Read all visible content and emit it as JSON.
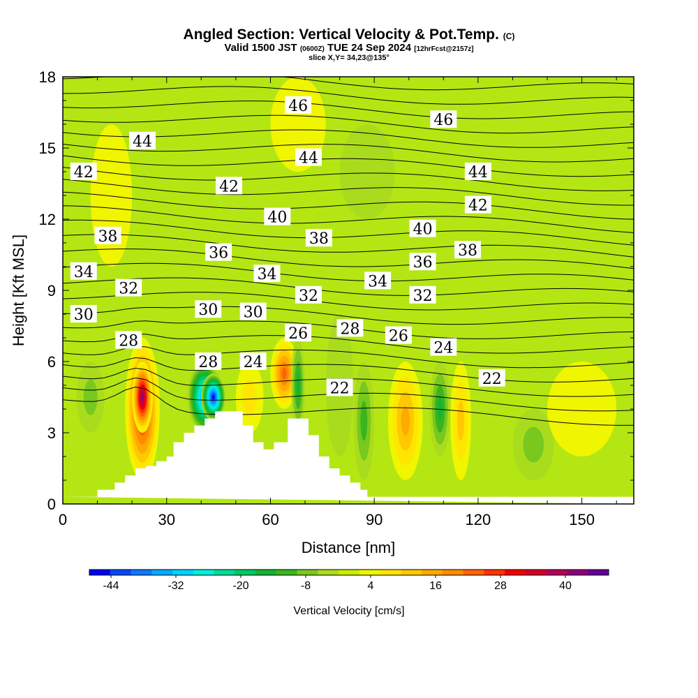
{
  "title": {
    "main": "Angled Section: Vertical Velocity & Pot.Temp.",
    "unit": "(C)",
    "valid_a": "Valid 1500 JST",
    "valid_z": "(0600Z)",
    "valid_b": "TUE 24 Sep 2024",
    "fcst": "[12hrFcst@2157z]",
    "slice": "slice X,Y= 34,23@135°"
  },
  "chart_data": {
    "type": "heatmap",
    "xlabel": "Distance [nm]",
    "ylabel": "Height [Kft MSL]",
    "xlim": [
      0,
      165
    ],
    "ylim": [
      0,
      18
    ],
    "x_ticks": [
      0,
      30,
      60,
      90,
      120,
      150
    ],
    "y_ticks": [
      0,
      3,
      6,
      9,
      12,
      15,
      18
    ],
    "colorbar": {
      "label": "Vertical Velocity [cm/s]",
      "ticks": [
        "-44",
        "-32",
        "-20",
        "-8",
        "4",
        "16",
        "28",
        "40"
      ],
      "levels": [
        -48,
        -44,
        -40,
        -36,
        -32,
        -28,
        -24,
        -20,
        -16,
        -12,
        -8,
        -4,
        0,
        4,
        8,
        12,
        16,
        20,
        24,
        28,
        32,
        36,
        40,
        44,
        48
      ],
      "colors": [
        "#0000f0",
        "#0a46f5",
        "#0f78ff",
        "#00aaff",
        "#00d2ff",
        "#00f0dc",
        "#00dc9a",
        "#00c864",
        "#14b432",
        "#3cb41e",
        "#78c81e",
        "#aadc1e",
        "#c8ee00",
        "#f0f500",
        "#ffe600",
        "#ffc800",
        "#ffaa00",
        "#ff8c00",
        "#ff6400",
        "#ff3200",
        "#f00000",
        "#d20028",
        "#b4005a",
        "#8c0078",
        "#640096"
      ]
    },
    "velocity_cells": [
      {
        "x": [
          4,
          12
        ],
        "y": [
          3,
          6
        ],
        "w": -6
      },
      {
        "x": [
          18,
          28
        ],
        "y": [
          1,
          7
        ],
        "w": 32
      },
      {
        "x": [
          20,
          26
        ],
        "y": [
          3,
          6
        ],
        "w": 44
      },
      {
        "x": [
          36,
          46
        ],
        "y": [
          3,
          6
        ],
        "w": -40
      },
      {
        "x": [
          40,
          47
        ],
        "y": [
          3.5,
          5.5
        ],
        "w": -48
      },
      {
        "x": [
          50,
          58
        ],
        "y": [
          3,
          6
        ],
        "w": 8
      },
      {
        "x": [
          60,
          68
        ],
        "y": [
          4,
          7
        ],
        "w": 24
      },
      {
        "x": [
          66,
          70
        ],
        "y": [
          3,
          7
        ],
        "w": -14
      },
      {
        "x": [
          76,
          84
        ],
        "y": [
          2,
          8
        ],
        "w": -4
      },
      {
        "x": [
          84,
          90
        ],
        "y": [
          1,
          6
        ],
        "w": -12
      },
      {
        "x": [
          94,
          104
        ],
        "y": [
          1,
          6
        ],
        "w": 16
      },
      {
        "x": [
          106,
          112
        ],
        "y": [
          2,
          6
        ],
        "w": -14
      },
      {
        "x": [
          112,
          118
        ],
        "y": [
          1,
          6
        ],
        "w": 10
      },
      {
        "x": [
          130,
          142
        ],
        "y": [
          1,
          4
        ],
        "w": -6
      },
      {
        "x": [
          140,
          160
        ],
        "y": [
          2,
          6
        ],
        "w": 4
      },
      {
        "x": [
          8,
          20
        ],
        "y": [
          10,
          16
        ],
        "w": 4
      },
      {
        "x": [
          60,
          76
        ],
        "y": [
          14,
          18
        ],
        "w": 4
      },
      {
        "x": [
          80,
          96
        ],
        "y": [
          12,
          16
        ],
        "w": -4
      }
    ],
    "terrain": [
      [
        0,
        0.3
      ],
      [
        10,
        0.3
      ],
      [
        10,
        0.6
      ],
      [
        15,
        0.6
      ],
      [
        15,
        0.9
      ],
      [
        18,
        0.9
      ],
      [
        18,
        1.2
      ],
      [
        21,
        1.2
      ],
      [
        21,
        1.5
      ],
      [
        24,
        1.5
      ],
      [
        24,
        1.6
      ],
      [
        27,
        1.6
      ],
      [
        27,
        1.8
      ],
      [
        30,
        1.8
      ],
      [
        30,
        2.0
      ],
      [
        32,
        2.0
      ],
      [
        32,
        2.6
      ],
      [
        35,
        2.6
      ],
      [
        35,
        3.0
      ],
      [
        38,
        3.0
      ],
      [
        38,
        3.3
      ],
      [
        41,
        3.3
      ],
      [
        41,
        3.6
      ],
      [
        44,
        3.6
      ],
      [
        44,
        3.9
      ],
      [
        52,
        3.9
      ],
      [
        52,
        3.3
      ],
      [
        55,
        3.3
      ],
      [
        55,
        2.6
      ],
      [
        58,
        2.6
      ],
      [
        58,
        2.3
      ],
      [
        61,
        2.3
      ],
      [
        61,
        2.6
      ],
      [
        65,
        2.6
      ],
      [
        65,
        3.6
      ],
      [
        71,
        3.6
      ],
      [
        71,
        2.9
      ],
      [
        74,
        2.9
      ],
      [
        74,
        2.0
      ],
      [
        77,
        2.0
      ],
      [
        77,
        1.5
      ],
      [
        80,
        1.5
      ],
      [
        80,
        1.2
      ],
      [
        83,
        1.2
      ],
      [
        83,
        0.9
      ],
      [
        86,
        0.9
      ],
      [
        86,
        0.6
      ],
      [
        88,
        0.6
      ],
      [
        88,
        0.3
      ],
      [
        165,
        0.3
      ],
      [
        165,
        0
      ]
    ],
    "theta_contours": [
      22,
      23,
      24,
      25,
      26,
      27,
      28,
      29,
      30,
      31,
      32,
      33,
      34,
      35,
      36,
      37,
      38,
      39,
      40,
      41,
      42,
      43,
      44,
      45,
      46
    ],
    "theta_labels": [
      {
        "text": "46",
        "x": 68,
        "y": 16.8
      },
      {
        "text": "46",
        "x": 110,
        "y": 16.2
      },
      {
        "text": "44",
        "x": 23,
        "y": 15.3
      },
      {
        "text": "44",
        "x": 71,
        "y": 14.6
      },
      {
        "text": "44",
        "x": 120,
        "y": 14.0
      },
      {
        "text": "42",
        "x": 6,
        "y": 14.0
      },
      {
        "text": "42",
        "x": 48,
        "y": 13.4
      },
      {
        "text": "42",
        "x": 120,
        "y": 12.6
      },
      {
        "text": "40",
        "x": 62,
        "y": 12.1
      },
      {
        "text": "40",
        "x": 104,
        "y": 11.6
      },
      {
        "text": "38",
        "x": 13,
        "y": 11.3
      },
      {
        "text": "38",
        "x": 74,
        "y": 11.2
      },
      {
        "text": "38",
        "x": 117,
        "y": 10.7
      },
      {
        "text": "36",
        "x": 45,
        "y": 10.6
      },
      {
        "text": "36",
        "x": 104,
        "y": 10.2
      },
      {
        "text": "34",
        "x": 6,
        "y": 9.8
      },
      {
        "text": "34",
        "x": 59,
        "y": 9.7
      },
      {
        "text": "34",
        "x": 91,
        "y": 9.4
      },
      {
        "text": "32",
        "x": 19,
        "y": 9.1
      },
      {
        "text": "32",
        "x": 71,
        "y": 8.8
      },
      {
        "text": "32",
        "x": 104,
        "y": 8.8
      },
      {
        "text": "30",
        "x": 6,
        "y": 8.0
      },
      {
        "text": "30",
        "x": 42,
        "y": 8.2
      },
      {
        "text": "30",
        "x": 55,
        "y": 8.1
      },
      {
        "text": "28",
        "x": 19,
        "y": 6.9
      },
      {
        "text": "28",
        "x": 42,
        "y": 6.0
      },
      {
        "text": "28",
        "x": 83,
        "y": 7.4
      },
      {
        "text": "26",
        "x": 68,
        "y": 7.2
      },
      {
        "text": "26",
        "x": 97,
        "y": 7.1
      },
      {
        "text": "24",
        "x": 55,
        "y": 6.0
      },
      {
        "text": "24",
        "x": 110,
        "y": 6.6
      },
      {
        "text": "22",
        "x": 80,
        "y": 4.9
      },
      {
        "text": "22",
        "x": 124,
        "y": 5.3
      }
    ]
  }
}
